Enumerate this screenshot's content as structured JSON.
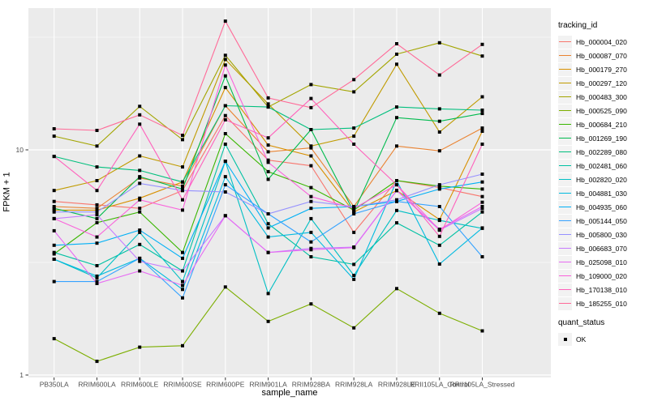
{
  "figure": {
    "background": "#ffffff",
    "panel_background": "#ebebeb",
    "gridline_color": "#ffffff",
    "tick_color": "#333333",
    "tick_label_color": "#4d4d4d",
    "point_color": "#000000"
  },
  "axes": {
    "x_title": "sample_name",
    "y_title": "FPKM + 1",
    "y_tick_labels": [
      "10",
      "1"
    ]
  },
  "legend": {
    "tracking_title": "tracking_id",
    "quant_title": "quant_status",
    "quant_items": [
      {
        "label": "OK",
        "marker": "black-square"
      }
    ]
  },
  "chart_data": {
    "type": "line",
    "title": "",
    "xlabel": "sample_name",
    "ylabel": "FPKM + 1",
    "y_scale": "log10",
    "ylim": [
      1,
      42
    ],
    "y_major_breaks": [
      1,
      10
    ],
    "y_minor_breaks": [
      3.162,
      31.623
    ],
    "grid": "major-and-minor",
    "legend_position": "right",
    "point_shape": "filled-black-square",
    "categories": [
      "PB350LA",
      "RRIM600LA",
      "RRIM600LE",
      "RRIM600SE",
      "RRIM600PE",
      "RRIM901LA",
      "RRIM928BA",
      "RRIM928LA",
      "RRIM928LE",
      "RRII105LA_Control",
      "RRII105LA_Stressed"
    ],
    "series": [
      {
        "name": "Hb_000004_020",
        "color": "#F8766D",
        "values": [
          5.9,
          5.7,
          5.5,
          6.6,
          14.2,
          9.0,
          8.5,
          4.3,
          7.3,
          6.8,
          6.2
        ]
      },
      {
        "name": "Hb_000087_070",
        "color": "#EA8331",
        "values": [
          5.6,
          5.5,
          7.5,
          6.9,
          15.7,
          9.8,
          10.2,
          5.6,
          10.4,
          9.9,
          12.5
        ]
      },
      {
        "name": "Hb_000179_270",
        "color": "#D89000",
        "values": [
          5.4,
          5.4,
          6.1,
          7.2,
          18.9,
          10.5,
          9.4,
          5.3,
          6.6,
          4.9,
          12.1
        ]
      },
      {
        "name": "Hb_000297_120",
        "color": "#C09B00",
        "values": [
          6.6,
          7.3,
          9.4,
          8.4,
          25.2,
          16.0,
          10.4,
          11.5,
          24.0,
          12.0,
          17.2
        ]
      },
      {
        "name": "Hb_000483_300",
        "color": "#A3A500",
        "values": [
          11.5,
          10.4,
          15.6,
          11.1,
          26.3,
          15.5,
          19.5,
          18.1,
          26.6,
          29.9,
          26.1
        ]
      },
      {
        "name": "Hb_000525_090",
        "color": "#7CAE00",
        "values": [
          1.45,
          1.15,
          1.33,
          1.35,
          2.46,
          1.73,
          2.07,
          1.62,
          2.42,
          1.88,
          1.57
        ]
      },
      {
        "name": "Hb_000684_210",
        "color": "#39B600",
        "values": [
          3.45,
          4.75,
          5.3,
          3.5,
          11.8,
          8.0,
          6.8,
          5.4,
          7.3,
          6.9,
          6.7
        ]
      },
      {
        "name": "Hb_001269_190",
        "color": "#00BB4E",
        "values": [
          5.5,
          4.95,
          7.6,
          6.7,
          21.3,
          7.4,
          12.3,
          5.3,
          13.9,
          13.4,
          14.5
        ]
      },
      {
        "name": "Hb_002289_080",
        "color": "#00BF7D",
        "values": [
          9.35,
          8.4,
          8.1,
          7.2,
          15.7,
          15.5,
          12.3,
          12.5,
          15.5,
          15.2,
          15.0
        ]
      },
      {
        "name": "Hb_002481_060",
        "color": "#00C1A3",
        "values": [
          3.5,
          3.06,
          3.8,
          2.9,
          10.6,
          4.7,
          3.35,
          3.1,
          4.74,
          3.77,
          5.3
        ]
      },
      {
        "name": "Hb_002820_020",
        "color": "#00BFC4",
        "values": [
          3.27,
          2.7,
          4.3,
          2.6,
          8.9,
          2.3,
          4.95,
          2.77,
          5.38,
          4.86,
          4.48
        ]
      },
      {
        "name": "Hb_004881_030",
        "color": "#00BAE0",
        "values": [
          3.27,
          2.75,
          3.3,
          2.4,
          7.6,
          4.1,
          4.3,
          2.66,
          7.3,
          3.11,
          4.5
        ]
      },
      {
        "name": "Hb_004935_060",
        "color": "#00B0F6",
        "values": [
          3.77,
          3.85,
          4.4,
          3.3,
          8.9,
          4.5,
          5.5,
          5.6,
          5.9,
          6.7,
          7.2
        ]
      },
      {
        "name": "Hb_005144_050",
        "color": "#35A2FF",
        "values": [
          2.6,
          2.6,
          3.3,
          2.2,
          7.0,
          5.2,
          3.9,
          5.2,
          5.9,
          5.6,
          3.35
        ]
      },
      {
        "name": "Hb_005800_030",
        "color": "#9590FF",
        "values": [
          5.3,
          5.3,
          7.1,
          6.6,
          6.5,
          5.2,
          5.9,
          5.6,
          6.0,
          7.0,
          7.8
        ]
      },
      {
        "name": "Hb_006683_070",
        "color": "#C77CFF",
        "values": [
          4.95,
          5.15,
          3.2,
          2.9,
          5.1,
          3.5,
          3.65,
          3.7,
          6.6,
          4.4,
          5.5
        ]
      },
      {
        "name": "Hb_025098_010",
        "color": "#E76BF3",
        "values": [
          4.37,
          2.55,
          2.9,
          2.5,
          5.1,
          3.5,
          3.6,
          3.68,
          6.6,
          4.44,
          5.6
        ]
      },
      {
        "name": "Hb_109000_020",
        "color": "#FA62DB",
        "values": [
          4.95,
          4.1,
          6.0,
          5.4,
          23.8,
          8.8,
          6.2,
          5.5,
          7.0,
          4.4,
          5.85
        ]
      },
      {
        "name": "Hb_170138_010",
        "color": "#FF62BC",
        "values": [
          9.35,
          6.6,
          13.0,
          6.0,
          13.6,
          11.3,
          16.9,
          10.6,
          7.0,
          4.13,
          10.6
        ]
      },
      {
        "name": "Hb_185255_010",
        "color": "#FF6A98",
        "values": [
          12.4,
          12.2,
          14.3,
          11.6,
          37.3,
          17.0,
          15.4,
          20.5,
          29.6,
          21.5,
          29.4
        ]
      }
    ]
  }
}
